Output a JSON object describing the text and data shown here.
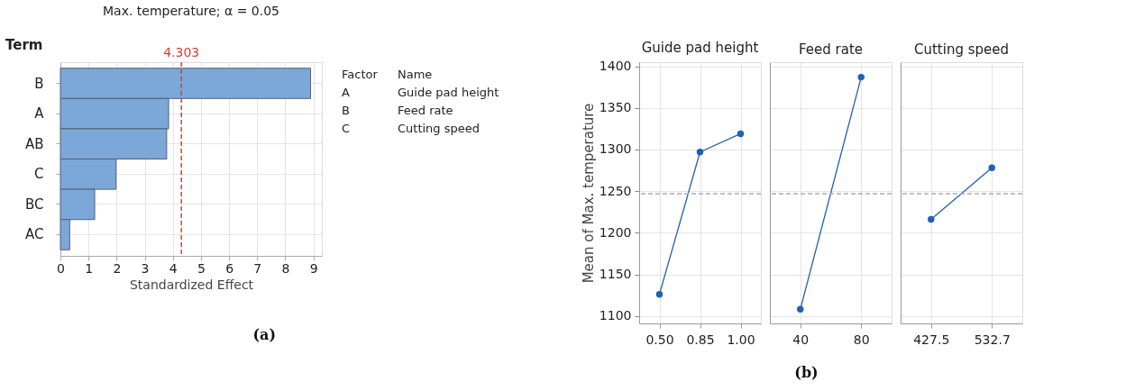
{
  "chart_data": [
    {
      "type": "bar",
      "orientation": "horizontal",
      "title": "Max. temperature; α = 0.05",
      "xlabel": "Standardized Effect",
      "ylabel": "Term",
      "categories": [
        "B",
        "A",
        "AB",
        "C",
        "BC",
        "AC"
      ],
      "values": [
        8.9,
        3.85,
        3.78,
        1.98,
        1.22,
        0.33
      ],
      "color": "#7ba7d9",
      "xlim": [
        0,
        9.3
      ],
      "xticks": [
        0,
        1,
        2,
        3,
        4,
        5,
        6,
        7,
        8,
        9
      ],
      "grid": true,
      "ref_lines": [
        {
          "axis": "x",
          "value": 4.303,
          "label": "4.303",
          "color": "#e03c31",
          "line_style": "dashed"
        }
      ],
      "annotations": [
        "Factor",
        "Name",
        "A",
        "Guide pad height",
        "B",
        "Feed rate",
        "C",
        "Cutting speed",
        "(a)"
      ]
    },
    {
      "type": "line",
      "title": "Guide pad height",
      "ylabel": "Mean of Max. temperature",
      "categories": [
        "0.50",
        "0.85",
        "1.00"
      ],
      "values": [
        1126,
        1297,
        1319
      ],
      "color": "#1f5fb8",
      "marker": "circle",
      "line_style": "solid",
      "ylim": [
        1091,
        1405
      ],
      "yticks": [
        1100,
        1150,
        1200,
        1250,
        1300,
        1350,
        1400
      ],
      "grid": true,
      "ref_lines": [
        {
          "axis": "y",
          "value": 1247,
          "color": "#aaaaaa",
          "line_style": "dashed"
        }
      ]
    },
    {
      "type": "line",
      "title": "Feed rate",
      "categories": [
        "40",
        "80"
      ],
      "values": [
        1108,
        1387
      ],
      "color": "#1f5fb8",
      "marker": "circle",
      "line_style": "solid",
      "ylim": [
        1091,
        1405
      ],
      "yticks": [
        1100,
        1150,
        1200,
        1250,
        1300,
        1350,
        1400
      ],
      "grid": true,
      "tick_labels": "x",
      "ref_lines": [
        {
          "axis": "y",
          "value": 1247,
          "color": "#aaaaaa",
          "line_style": "dashed"
        }
      ],
      "annotations": [
        "(b)"
      ]
    },
    {
      "type": "line",
      "title": "Cutting speed",
      "categories": [
        "427.5",
        "532.7"
      ],
      "values": [
        1216,
        1278
      ],
      "color": "#1f5fb8",
      "marker": "circle",
      "line_style": "solid",
      "ylim": [
        1091,
        1405
      ],
      "yticks": [
        1100,
        1150,
        1200,
        1250,
        1300,
        1350,
        1400
      ],
      "grid": true,
      "tick_labels": "x",
      "ref_lines": [
        {
          "axis": "y",
          "value": 1247,
          "color": "#aaaaaa",
          "line_style": "dashed"
        }
      ]
    }
  ]
}
